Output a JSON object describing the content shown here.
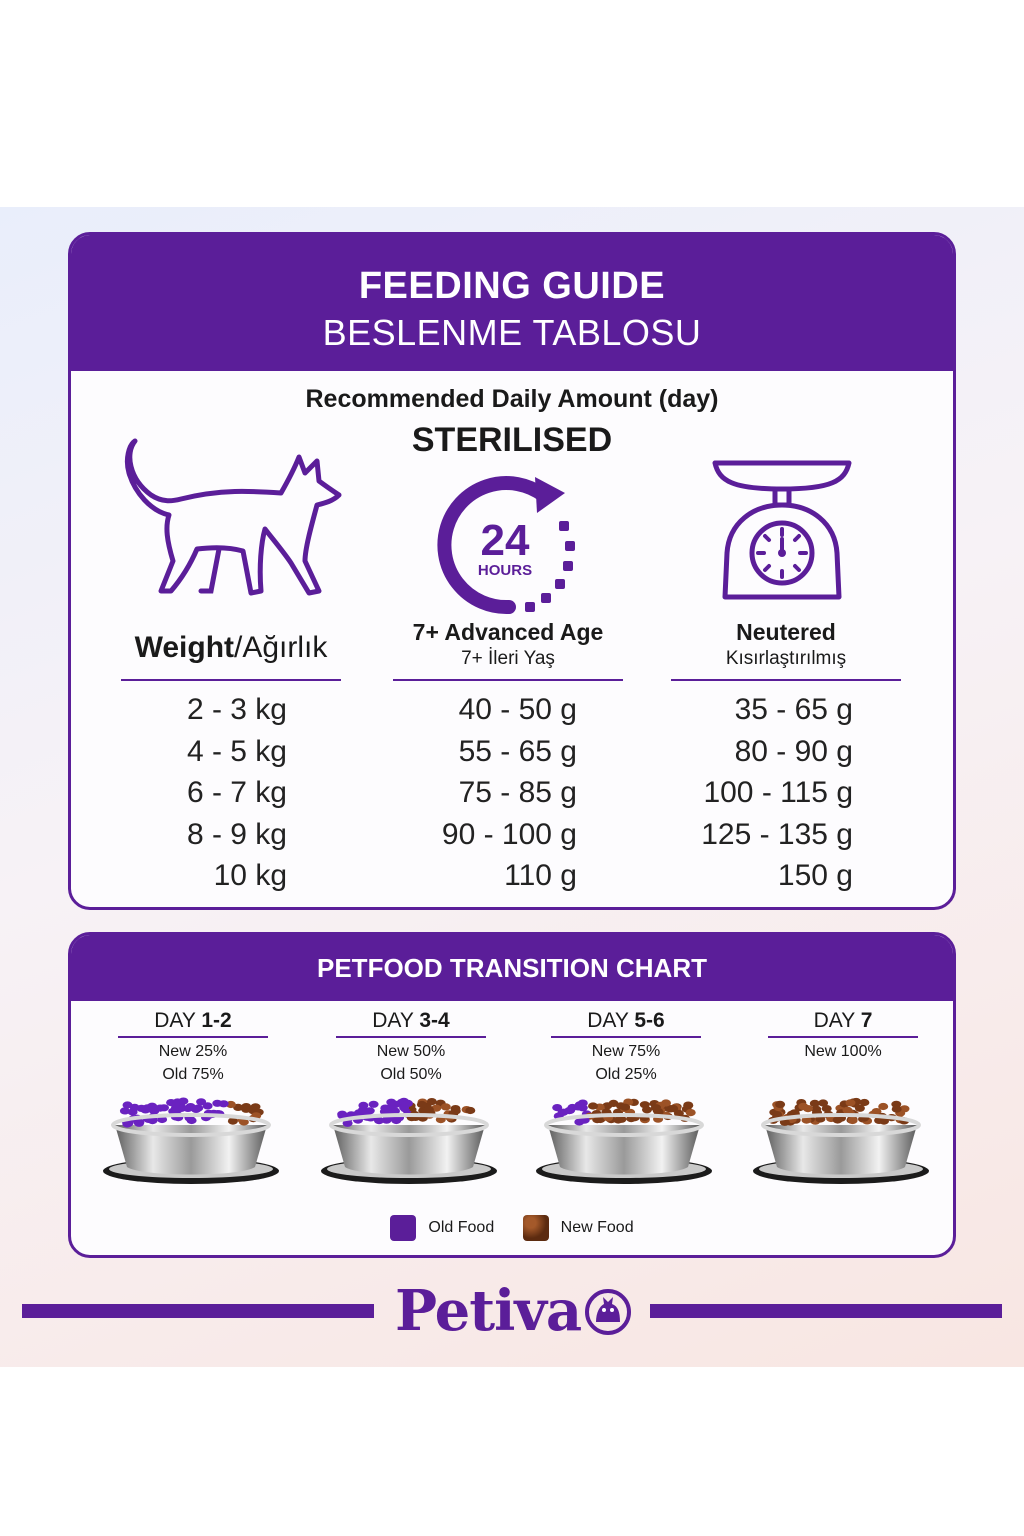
{
  "guide": {
    "title": "FEEDING GUIDE",
    "subtitle": "BESLENME TABLOSU",
    "recommended": "Recommended Daily Amount (day)",
    "type": "STERILISED",
    "clock_number": "24",
    "clock_unit": "HOURS",
    "weight_header_bold": "Weight",
    "weight_header_rest": "/Ağırlık",
    "age_header": "7+ Advanced Age",
    "age_sub": "7+ İleri Yaş",
    "neutered_header": "Neutered",
    "neutered_sub": "Kısırlaştırılmış",
    "weights": [
      "2 - 3 kg",
      "4 - 5 kg",
      "6 - 7 kg",
      "8 - 9 kg",
      "10 kg"
    ],
    "advanced_age": [
      "40 - 50 g",
      "55 - 65 g",
      "75 - 85 g",
      "90 - 100 g",
      "110 g"
    ],
    "neutered": [
      "35 - 65 g",
      "80 - 90 g",
      "100 - 115 g",
      "125 - 135 g",
      "150 g"
    ]
  },
  "transition": {
    "title": "PETFOOD TRANSITION CHART",
    "days": [
      {
        "prefix": "DAY",
        "range": "1-2",
        "new": "New 25%",
        "old": "Old 75%",
        "new_fraction": 0.25
      },
      {
        "prefix": "DAY",
        "range": "3-4",
        "new": "New 50%",
        "old": "Old 50%",
        "new_fraction": 0.5
      },
      {
        "prefix": "DAY",
        "range": "5-6",
        "new": "New 75%",
        "old": "Old 25%",
        "new_fraction": 0.75
      },
      {
        "prefix": "DAY",
        "range": "7",
        "new": "New 100%",
        "old": "",
        "new_fraction": 1.0
      }
    ],
    "legend_old": "Old Food",
    "legend_new": "New Food"
  },
  "brand": {
    "name": "Petiva"
  },
  "colors": {
    "accent": "#5b1e99",
    "new_food": "#7a3a17",
    "old_food": "#6a22c0"
  },
  "icons": [
    "cat-icon",
    "clock-24-hours-icon",
    "kitchen-scale-icon",
    "food-bowl-icon",
    "cat-logo-icon"
  ]
}
